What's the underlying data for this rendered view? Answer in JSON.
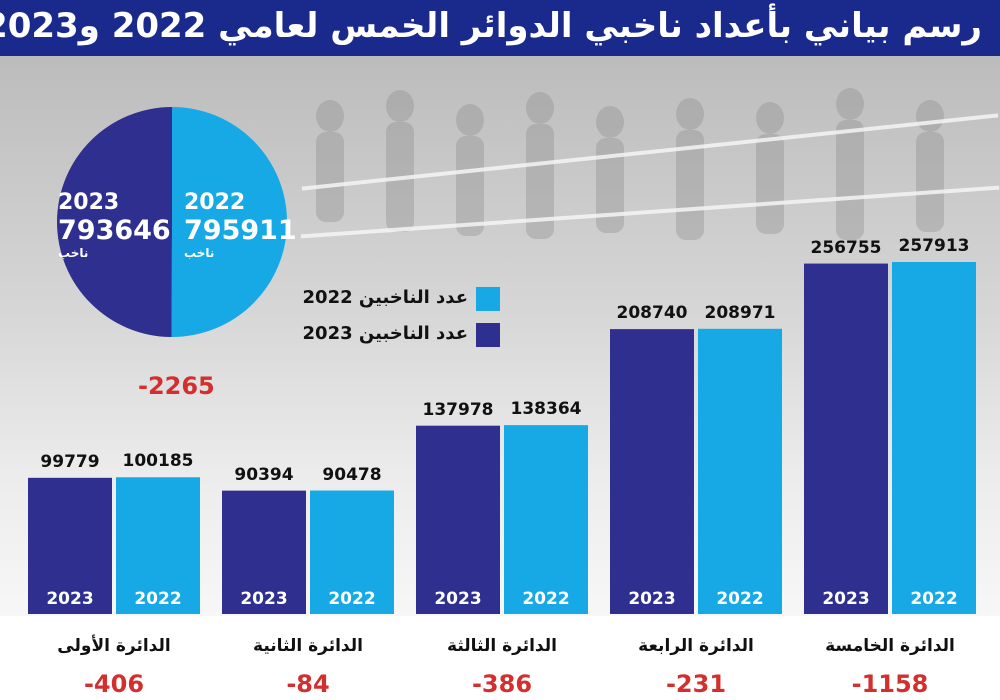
{
  "header": {
    "title": "رسم بياني بأعداد ناخبي الدوائر الخمس لعامي 2022 و2023"
  },
  "colors": {
    "header_bg": "#1a2a8c",
    "series_2023": "#2e2f8e",
    "series_2022": "#17a8e6",
    "negative": "#d32f2f"
  },
  "icons": {
    "background_photo": "voters-queue-photo"
  },
  "pie": {
    "left": {
      "year": "2023",
      "value": "793646",
      "unit": "ناخب"
    },
    "right": {
      "year": "2022",
      "value": "795911",
      "unit": "ناخب"
    },
    "difference": "-2265"
  },
  "legend": [
    {
      "label": "عدد الناخبين 2022",
      "color": "#17a8e6"
    },
    {
      "label": "عدد الناخبين 2023",
      "color": "#2e2f8e"
    }
  ],
  "chart_data": [
    {
      "type": "pie",
      "title": "",
      "slices": [
        {
          "label": "2023",
          "value": 793646,
          "unit": "ناخب"
        },
        {
          "label": "2022",
          "value": 795911,
          "unit": "ناخب"
        }
      ],
      "annotation": "-2265"
    },
    {
      "type": "bar",
      "title": "رسم بياني بأعداد ناخبي الدوائر الخمس لعامي 2022 و2023",
      "xlabel": "",
      "ylabel": "",
      "categories": [
        "الدائرة الأولى",
        "الدائرة الثانية",
        "الدائرة الثالثة",
        "الدائرة الرابعة",
        "الدائرة الخامسة"
      ],
      "series": [
        {
          "name": "2023",
          "legend": "عدد الناخبين 2023",
          "values": [
            99779,
            90394,
            137978,
            208740,
            256755
          ]
        },
        {
          "name": "2022",
          "legend": "عدد الناخبين 2022",
          "values": [
            100185,
            90478,
            138364,
            208971,
            257913
          ]
        }
      ],
      "differences": [
        "-406",
        "-84",
        "-386",
        "-231",
        "-1158"
      ],
      "ylim": [
        0,
        300000
      ],
      "legend_position": "top-center",
      "grid": false
    }
  ]
}
